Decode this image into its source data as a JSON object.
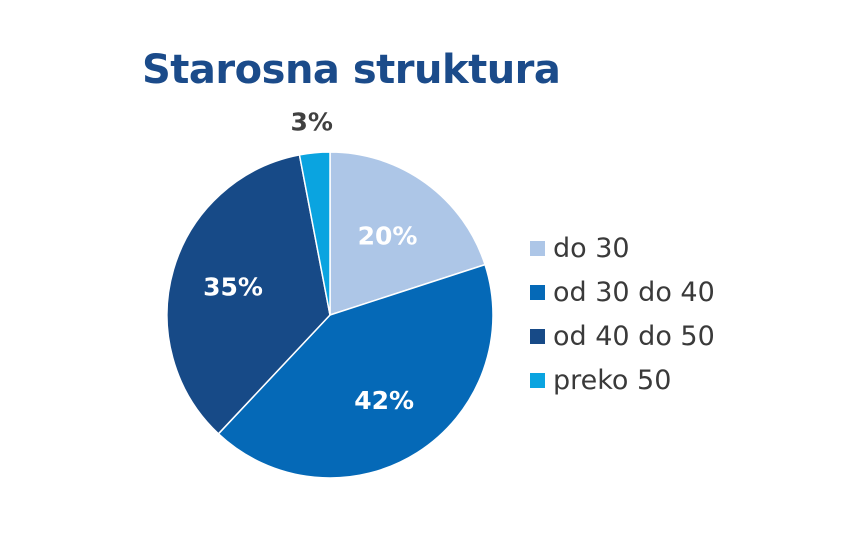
{
  "chart_data": {
    "type": "pie",
    "title": "Starosna struktura",
    "categories": [
      "do 30",
      "od 30 do 40",
      "od 40 do 50",
      "preko 50"
    ],
    "values": [
      20,
      42,
      35,
      3
    ],
    "data_labels": [
      "20%",
      "42%",
      "35%",
      "3%"
    ],
    "colors": [
      "#adc6e7",
      "#0569b7",
      "#174a87",
      "#0aa4e0"
    ],
    "label_colors": [
      "#ffffff",
      "#ffffff",
      "#ffffff",
      "#404040"
    ],
    "legend_position": "right"
  }
}
